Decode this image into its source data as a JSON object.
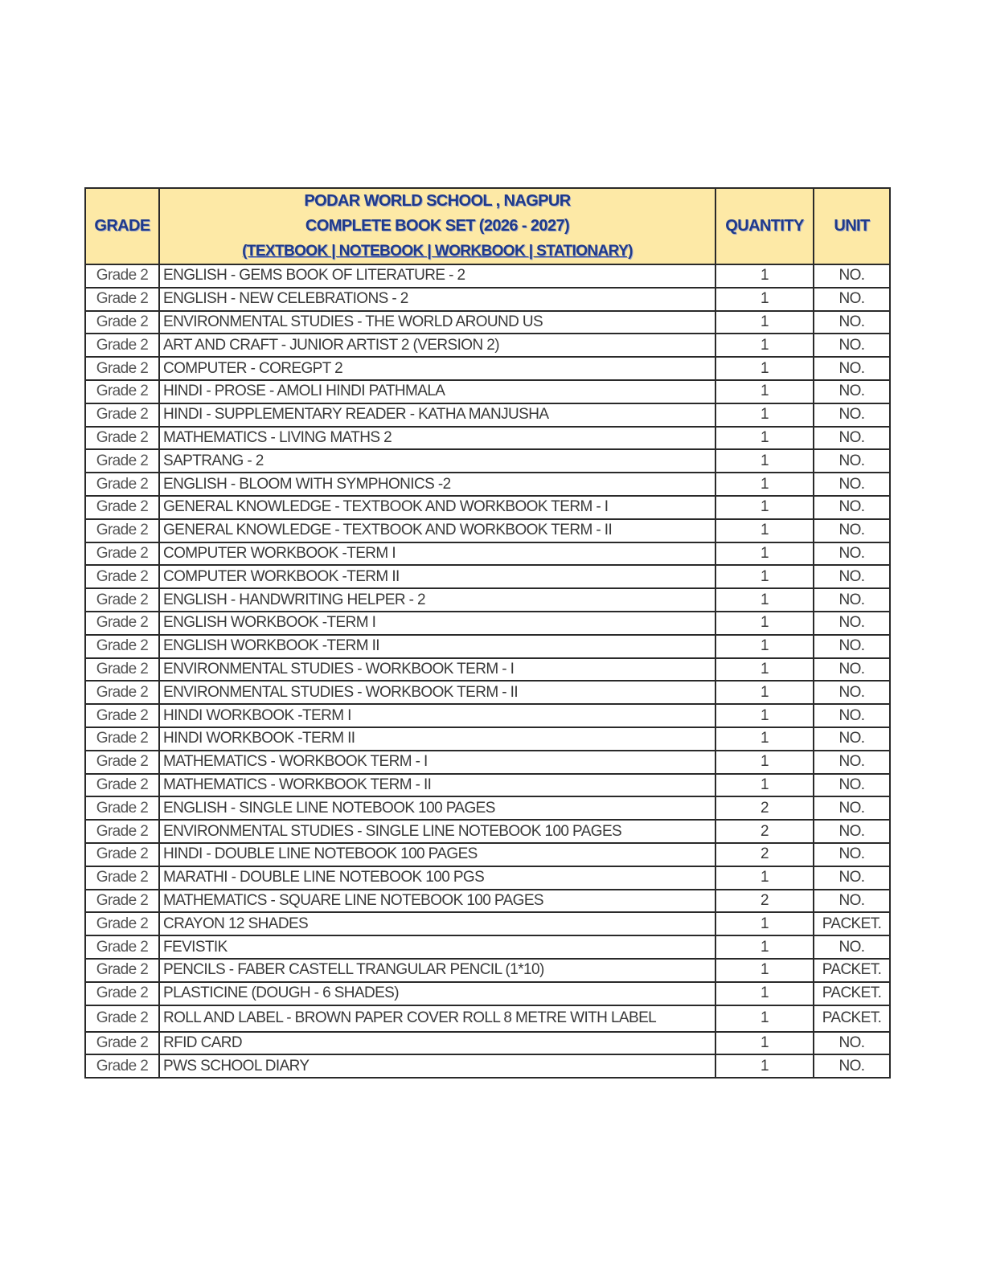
{
  "header": {
    "grade": "GRADE",
    "title_lines": [
      "PODAR WORLD SCHOOL , NAGPUR",
      "COMPLETE BOOK SET (2026 - 2027)",
      "(TEXTBOOK | NOTEBOOK  | WORKBOOK | STATIONARY)"
    ],
    "quantity": "QUANTITY",
    "unit": "UNIT",
    "header_bg": "#fde9a6",
    "header_text": "#1f3a8a"
  },
  "rows": [
    {
      "grade": "Grade 2",
      "item": "ENGLISH - GEMS BOOK OF LITERATURE - 2",
      "qty": "1",
      "unit": "NO."
    },
    {
      "grade": "Grade 2",
      "item": "ENGLISH - NEW CELEBRATIONS - 2",
      "qty": "1",
      "unit": "NO."
    },
    {
      "grade": "Grade 2",
      "item": "ENVIRONMENTAL STUDIES - THE WORLD AROUND US",
      "qty": "1",
      "unit": "NO."
    },
    {
      "grade": "Grade 2",
      "item": "ART AND CRAFT - JUNIOR ARTIST 2 (VERSION 2)",
      "qty": "1",
      "unit": "NO."
    },
    {
      "grade": "Grade 2",
      "item": "COMPUTER - COREGPT 2",
      "qty": "1",
      "unit": "NO."
    },
    {
      "grade": "Grade 2",
      "item": "HINDI - PROSE - AMOLI HINDI PATHMALA",
      "qty": "1",
      "unit": "NO."
    },
    {
      "grade": "Grade 2",
      "item": "HINDI - SUPPLEMENTARY READER - KATHA MANJUSHA",
      "qty": "1",
      "unit": "NO."
    },
    {
      "grade": "Grade 2",
      "item": "MATHEMATICS - LIVING MATHS 2",
      "qty": "1",
      "unit": "NO."
    },
    {
      "grade": "Grade 2",
      "item": "SAPTRANG - 2",
      "qty": "1",
      "unit": "NO."
    },
    {
      "grade": "Grade 2",
      "item": "ENGLISH - BLOOM WITH SYMPHONICS -2",
      "qty": "1",
      "unit": "NO."
    },
    {
      "grade": "Grade 2",
      "item": "GENERAL KNOWLEDGE - TEXTBOOK AND WORKBOOK TERM - I",
      "qty": "1",
      "unit": "NO."
    },
    {
      "grade": "Grade 2",
      "item": "GENERAL KNOWLEDGE - TEXTBOOK AND WORKBOOK TERM - II",
      "qty": "1",
      "unit": "NO."
    },
    {
      "grade": "Grade 2",
      "item": "COMPUTER WORKBOOK -TERM I",
      "qty": "1",
      "unit": "NO."
    },
    {
      "grade": "Grade 2",
      "item": "COMPUTER WORKBOOK -TERM II",
      "qty": "1",
      "unit": "NO."
    },
    {
      "grade": "Grade 2",
      "item": "ENGLISH - HANDWRITING HELPER - 2",
      "qty": "1",
      "unit": "NO."
    },
    {
      "grade": "Grade 2",
      "item": "ENGLISH WORKBOOK -TERM I",
      "qty": "1",
      "unit": "NO."
    },
    {
      "grade": "Grade 2",
      "item": "ENGLISH WORKBOOK -TERM II",
      "qty": "1",
      "unit": "NO."
    },
    {
      "grade": "Grade 2",
      "item": "ENVIRONMENTAL STUDIES - WORKBOOK TERM - I",
      "qty": "1",
      "unit": "NO."
    },
    {
      "grade": "Grade 2",
      "item": "ENVIRONMENTAL STUDIES - WORKBOOK TERM - II",
      "qty": "1",
      "unit": "NO."
    },
    {
      "grade": "Grade 2",
      "item": "HINDI WORKBOOK -TERM I",
      "qty": "1",
      "unit": "NO."
    },
    {
      "grade": "Grade 2",
      "item": "HINDI WORKBOOK -TERM II",
      "qty": "1",
      "unit": "NO."
    },
    {
      "grade": "Grade 2",
      "item": "MATHEMATICS - WORKBOOK TERM - I",
      "qty": "1",
      "unit": "NO."
    },
    {
      "grade": "Grade 2",
      "item": "MATHEMATICS - WORKBOOK TERM - II",
      "qty": "1",
      "unit": "NO."
    },
    {
      "grade": "Grade 2",
      "item": "ENGLISH - SINGLE LINE NOTEBOOK 100 PAGES",
      "qty": "2",
      "unit": "NO."
    },
    {
      "grade": "Grade 2",
      "item": "ENVIRONMENTAL STUDIES - SINGLE LINE NOTEBOOK 100 PAGES",
      "qty": "2",
      "unit": "NO."
    },
    {
      "grade": "Grade 2",
      "item": "HINDI - DOUBLE LINE NOTEBOOK 100 PAGES",
      "qty": "2",
      "unit": "NO."
    },
    {
      "grade": "Grade 2",
      "item": "MARATHI - DOUBLE LINE NOTEBOOK 100 PGS",
      "qty": "1",
      "unit": "NO."
    },
    {
      "grade": "Grade 2",
      "item": "MATHEMATICS - SQUARE LINE NOTEBOOK 100 PAGES",
      "qty": "2",
      "unit": "NO."
    },
    {
      "grade": "Grade 2",
      "item": "CRAYON 12 SHADES",
      "qty": "1",
      "unit": "PACKET."
    },
    {
      "grade": "Grade 2",
      "item": "FEVISTIK",
      "qty": "1",
      "unit": "NO."
    },
    {
      "grade": "Grade 2",
      "item": "PENCILS - FABER CASTELL TRANGULAR PENCIL (1*10)",
      "qty": "1",
      "unit": "PACKET."
    },
    {
      "grade": "Grade 2",
      "item": "PLASTICINE (DOUGH - 6 SHADES)",
      "qty": "1",
      "unit": "PACKET."
    },
    {
      "grade": "Grade 2",
      "item": "ROLL AND LABEL - BROWN PAPER COVER ROLL 8 METRE WITH LABEL",
      "qty": "1",
      "unit": "PACKET."
    },
    {
      "grade": "Grade 2",
      "item": "RFID CARD",
      "qty": "1",
      "unit": "NO."
    },
    {
      "grade": "Grade 2",
      "item": "PWS SCHOOL DIARY",
      "qty": "1",
      "unit": "NO."
    }
  ]
}
